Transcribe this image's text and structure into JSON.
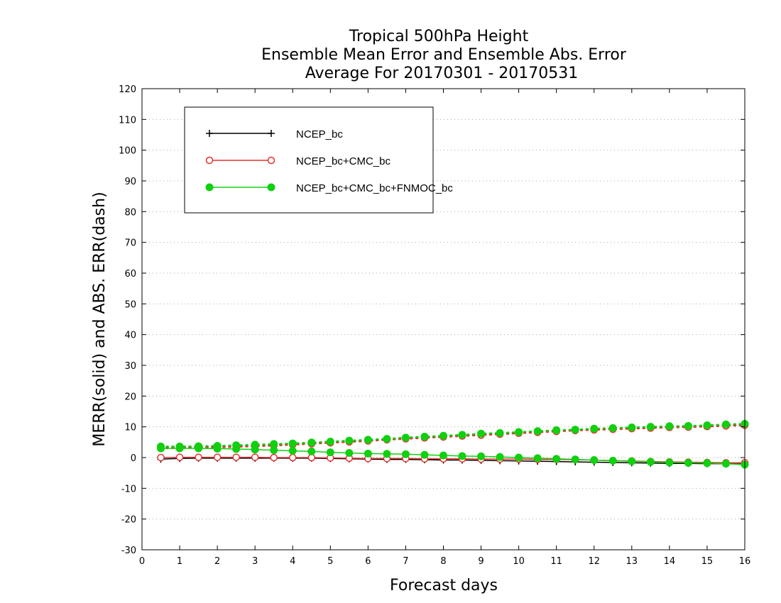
{
  "chart_data": {
    "type": "line",
    "title": [
      "Tropical 500hPa Height",
      "Ensemble Mean Error and Ensemble Abs. Error",
      "Average For 20170301 - 20170531"
    ],
    "xlabel": "Forecast days",
    "ylabel": "MERR(solid) and ABS. ERR(dash)",
    "xlim": [
      0,
      16
    ],
    "ylim": [
      -30,
      120
    ],
    "xticks": [
      0,
      1,
      2,
      3,
      4,
      5,
      6,
      7,
      8,
      9,
      10,
      11,
      12,
      13,
      14,
      15,
      16
    ],
    "yticks": [
      -30,
      -20,
      -10,
      0,
      10,
      20,
      30,
      40,
      50,
      60,
      70,
      80,
      90,
      100,
      110,
      120
    ],
    "grid": true,
    "legend_position": "top-left",
    "x": [
      0.5,
      1,
      1.5,
      2,
      2.5,
      3,
      3.5,
      4,
      4.5,
      5,
      5.5,
      6,
      6.5,
      7,
      7.5,
      8,
      8.5,
      9,
      9.5,
      10,
      10.5,
      11,
      11.5,
      12,
      12.5,
      13,
      13.5,
      14,
      14.5,
      15,
      15.5,
      16
    ],
    "series": [
      {
        "name": "NCEP_bc",
        "color": "#000000",
        "marker": "plus",
        "merr": [
          -0.5,
          -0.3,
          -0.2,
          -0.2,
          -0.2,
          -0.2,
          -0.2,
          -0.2,
          -0.2,
          -0.3,
          -0.4,
          -0.5,
          -0.6,
          -0.6,
          -0.7,
          -0.8,
          -0.8,
          -0.9,
          -1.0,
          -1.1,
          -1.2,
          -1.3,
          -1.4,
          -1.5,
          -1.6,
          -1.7,
          -1.8,
          -1.9,
          -1.9,
          -2.0,
          -2.0,
          -2.1
        ],
        "abs_err": [
          3.2,
          3.3,
          3.4,
          3.5,
          3.7,
          3.9,
          4.1,
          4.4,
          4.7,
          5.0,
          5.3,
          5.6,
          6.0,
          6.3,
          6.6,
          7.0,
          7.3,
          7.6,
          7.9,
          8.2,
          8.5,
          8.8,
          9.0,
          9.3,
          9.5,
          9.7,
          9.9,
          10.0,
          10.2,
          10.4,
          10.6,
          10.8
        ]
      },
      {
        "name": "NCEP_bc+CMC_bc",
        "color": "#e83030",
        "marker": "open-circle",
        "merr": [
          0.0,
          0.1,
          0.1,
          0.1,
          0.1,
          0.1,
          0.0,
          0.0,
          0.0,
          -0.1,
          -0.2,
          -0.3,
          -0.3,
          -0.3,
          -0.4,
          -0.4,
          -0.4,
          -0.5,
          -0.5,
          -0.5,
          -0.6,
          -0.6,
          -0.7,
          -0.8,
          -1.0,
          -1.1,
          -1.3,
          -1.4,
          -1.5,
          -1.6,
          -1.7,
          -1.7
        ],
        "abs_err": [
          3.0,
          3.1,
          3.2,
          3.3,
          3.5,
          3.7,
          3.9,
          4.2,
          4.5,
          4.8,
          5.1,
          5.4,
          5.8,
          6.1,
          6.4,
          6.7,
          7.0,
          7.3,
          7.6,
          7.9,
          8.2,
          8.5,
          8.8,
          9.0,
          9.2,
          9.4,
          9.6,
          9.8,
          9.9,
          10.1,
          10.3,
          10.5
        ]
      },
      {
        "name": "NCEP_bc+CMC_bc+FNMOC_bc",
        "color": "#10d010",
        "marker": "filled-circle",
        "merr": [
          3.0,
          3.0,
          3.0,
          2.9,
          2.8,
          2.6,
          2.4,
          2.2,
          2.0,
          1.7,
          1.5,
          1.3,
          1.2,
          1.1,
          0.9,
          0.7,
          0.5,
          0.4,
          0.2,
          0.0,
          -0.2,
          -0.4,
          -0.6,
          -0.8,
          -1.0,
          -1.2,
          -1.4,
          -1.6,
          -1.7,
          -1.8,
          -2.0,
          -2.3
        ],
        "abs_err": [
          3.6,
          3.6,
          3.7,
          3.8,
          4.0,
          4.2,
          4.4,
          4.6,
          4.9,
          5.2,
          5.5,
          5.8,
          6.1,
          6.5,
          6.8,
          7.1,
          7.4,
          7.8,
          8.0,
          8.3,
          8.6,
          8.9,
          9.1,
          9.4,
          9.6,
          9.8,
          10.0,
          10.2,
          10.3,
          10.5,
          10.8,
          11.0
        ]
      }
    ]
  }
}
